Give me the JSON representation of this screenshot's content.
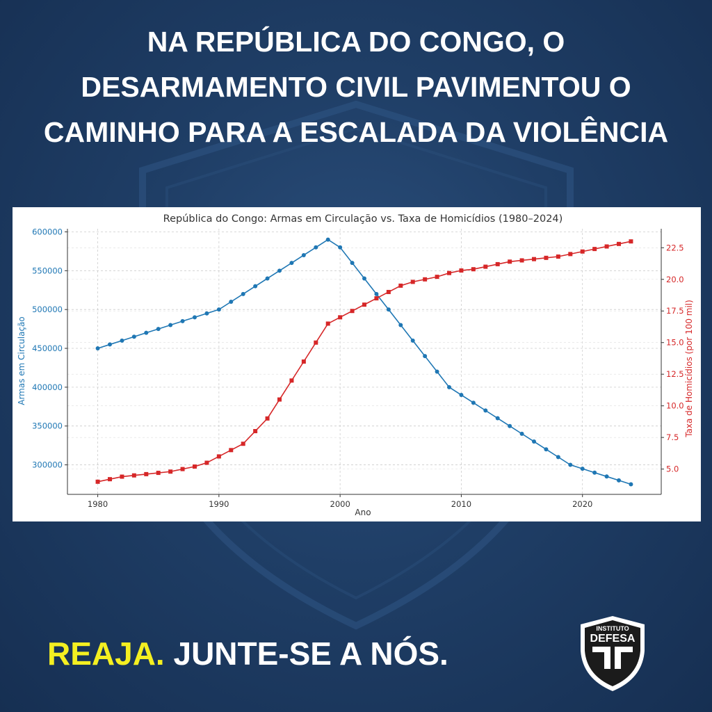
{
  "background": {
    "color": "#1f3e66"
  },
  "headline": {
    "lines": [
      "NA REPÚBLICA DO CONGO, O",
      "DESARMAMENTO CIVIL PAVIMENTOU O",
      "CAMINHO PARA A ESCALADA DA VIOLÊNCIA"
    ],
    "color": "#ffffff"
  },
  "chart_data": {
    "type": "line",
    "title": "República do Congo: Armas em Circulação vs. Taxa de Homicídios (1980–2024)",
    "xlabel": "Ano",
    "xlim": [
      1977.5,
      2026.5
    ],
    "x_ticks": [
      1980,
      1990,
      2000,
      2010,
      2020
    ],
    "x": [
      1980,
      1981,
      1982,
      1983,
      1984,
      1985,
      1986,
      1987,
      1988,
      1989,
      1990,
      1991,
      1992,
      1993,
      1994,
      1995,
      1996,
      1997,
      1998,
      1999,
      2000,
      2001,
      2002,
      2003,
      2004,
      2005,
      2006,
      2007,
      2008,
      2009,
      2010,
      2011,
      2012,
      2013,
      2014,
      2015,
      2016,
      2017,
      2018,
      2019,
      2020,
      2021,
      2022,
      2023,
      2024
    ],
    "grid": true,
    "legend": "none",
    "series": [
      {
        "name": "Armas em Circulação",
        "axis": "left",
        "color": "#1f77b4",
        "marker": "circle",
        "ylabel": "Armas em Circulação",
        "ylim": [
          262000,
          604000
        ],
        "y_ticks": [
          300000,
          350000,
          400000,
          450000,
          500000,
          550000,
          600000
        ],
        "values": [
          450000,
          455000,
          460000,
          465000,
          470000,
          475000,
          480000,
          485000,
          490000,
          495000,
          500000,
          510000,
          520000,
          530000,
          540000,
          550000,
          560000,
          570000,
          580000,
          590000,
          580000,
          560000,
          540000,
          520000,
          500000,
          480000,
          460000,
          440000,
          420000,
          400000,
          390000,
          380000,
          370000,
          360000,
          350000,
          340000,
          330000,
          320000,
          310000,
          300000,
          295000,
          290000,
          285000,
          280000,
          275000
        ]
      },
      {
        "name": "Taxa de Homicídios (por 100 mil)",
        "axis": "right",
        "color": "#d62728",
        "marker": "square",
        "ylabel": "Taxa de Homicídios (por 100 mil)",
        "ylim": [
          3.0,
          24.0
        ],
        "y_ticks": [
          5.0,
          7.5,
          10.0,
          12.5,
          15.0,
          17.5,
          20.0,
          22.5
        ],
        "values": [
          4.0,
          4.2,
          4.4,
          4.5,
          4.6,
          4.7,
          4.8,
          5.0,
          5.2,
          5.5,
          6.0,
          6.5,
          7.0,
          8.0,
          9.0,
          10.5,
          12.0,
          13.5,
          15.0,
          16.5,
          17.0,
          17.5,
          18.0,
          18.5,
          19.0,
          19.5,
          19.8,
          20.0,
          20.2,
          20.5,
          20.7,
          20.8,
          21.0,
          21.2,
          21.4,
          21.5,
          21.6,
          21.7,
          21.8,
          22.0,
          22.2,
          22.4,
          22.6,
          22.8,
          23.0
        ]
      }
    ]
  },
  "cta": {
    "highlight": "REAJA.",
    "rest": " JUNTE-SE A NÓS.",
    "highlight_color": "#f4ef21"
  },
  "logo": {
    "top_text": "INSTITUTO",
    "main_text": "DEFESA"
  }
}
